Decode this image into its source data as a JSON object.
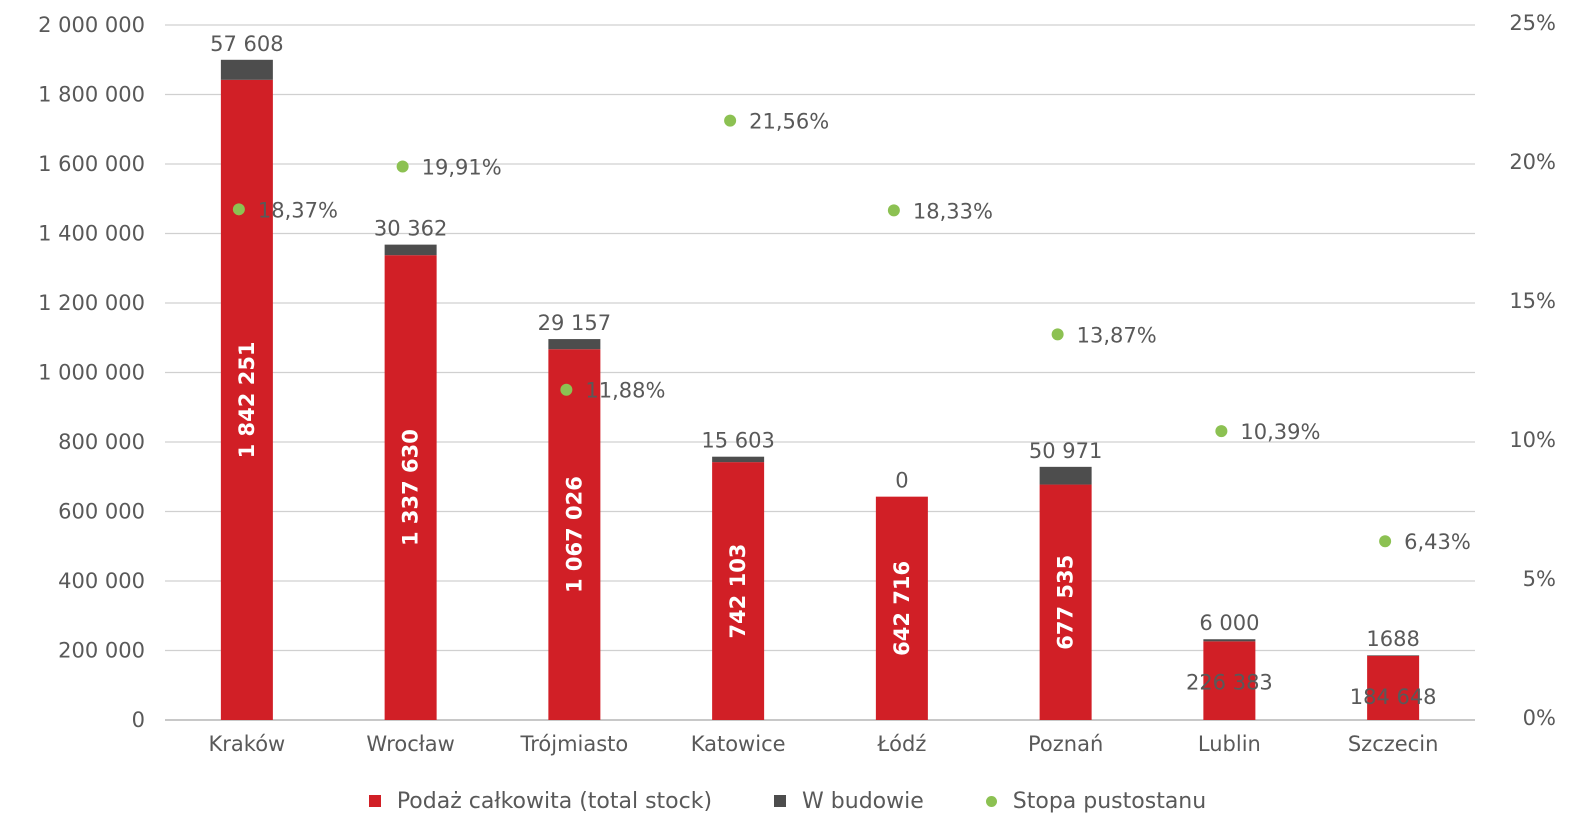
{
  "chart_data": {
    "type": "bar",
    "stacked": true,
    "categories": [
      "Kraków",
      "Wrocław",
      "Trójmiasto",
      "Katowice",
      "Łódź",
      "Poznań",
      "Lublin",
      "Szczecin"
    ],
    "series": [
      {
        "name": "Podaż całkowita (total stock)",
        "type": "bar",
        "axis": "left",
        "color": "#d11f26",
        "values": [
          1842251,
          1337630,
          1067026,
          742103,
          642716,
          677535,
          226383,
          184648
        ],
        "labels": [
          "1 842 251",
          "1 337 630",
          "1 067 026",
          "742 103",
          "642 716",
          "677 535",
          "226 383",
          "184 648"
        ]
      },
      {
        "name": "W budowie",
        "type": "bar",
        "axis": "left",
        "color": "#4d4d4d",
        "values": [
          57608,
          30362,
          29157,
          15603,
          0,
          50971,
          6000,
          1688
        ],
        "labels": [
          "57 608",
          "30 362",
          "29 157",
          "15 603",
          "0",
          "50 971",
          "6 000",
          "1688"
        ]
      },
      {
        "name": "Stopa pustostanu",
        "type": "scatter",
        "axis": "right",
        "color": "#8cc152",
        "values": [
          18.37,
          19.91,
          11.88,
          21.56,
          18.33,
          13.87,
          10.39,
          6.43
        ],
        "labels": [
          "18,37%",
          "19,91%",
          "11,88%",
          "21,56%",
          "18,33%",
          "13,87%",
          "10,39%",
          "6,43%"
        ]
      }
    ],
    "y_left": {
      "min": 0,
      "max": 2000000,
      "step": 200000,
      "ticks": [
        "0",
        "200 000",
        "400 000",
        "600 000",
        "800 000",
        "1 000 000",
        "1 200 000",
        "1 400 000",
        "1 600 000",
        "1 800 000",
        "2 000 000"
      ]
    },
    "y_right": {
      "min": 0,
      "max": 25,
      "step": 5,
      "ticks": [
        "0%",
        "5%",
        "10%",
        "15%",
        "20%",
        "25%"
      ]
    },
    "grid": true,
    "legend_position": "bottom",
    "title": "",
    "xlabel": "",
    "ylabel": ""
  }
}
